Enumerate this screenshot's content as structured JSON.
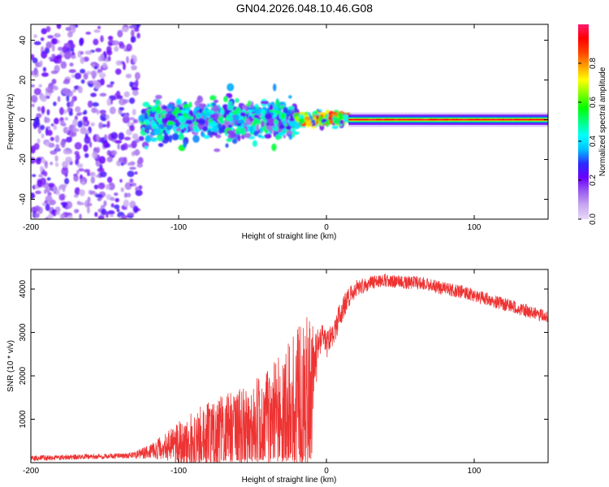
{
  "title": "GN04.2026.048.10.46.G08",
  "chart_data": [
    {
      "type": "heatmap",
      "xlabel": "Height of straight line (km)",
      "ylabel": "Frequency (Hz)",
      "xlim": [
        -200,
        150
      ],
      "ylim": [
        -50,
        48
      ],
      "xticks": [
        "-200",
        "-100",
        "0",
        "100"
      ],
      "xtick_values": [
        -200,
        -100,
        0,
        100
      ],
      "yticks": [
        "-40",
        "-20",
        "0",
        "20",
        "40"
      ],
      "ytick_values": [
        -40,
        -20,
        0,
        20,
        40
      ],
      "colorbar": {
        "label": "Normalized spectral amplitude",
        "range": [
          0,
          1
        ],
        "ticks": [
          "0.0",
          "0.2",
          "0.4",
          "0.6",
          "0.8"
        ],
        "tick_values": [
          0.0,
          0.2,
          0.4,
          0.6,
          0.8
        ],
        "colors": [
          "#e8d8f8",
          "#c8a8f0",
          "#9a5cf0",
          "#6a00ff",
          "#2b2bff",
          "#00bfff",
          "#00ffff",
          "#00ff80",
          "#00ff00",
          "#80ff00",
          "#ffff00",
          "#ffa000",
          "#ff4000",
          "#ff0000",
          "#ff1a6e"
        ]
      },
      "regions": [
        {
          "x_range": [
            -200,
            -125
          ],
          "f_range": [
            -50,
            48
          ],
          "amplitude": 0.1,
          "description": "scattered noise"
        },
        {
          "x_range": [
            -125,
            -20
          ],
          "f_range": [
            -12,
            10
          ],
          "amplitude": 0.35
        },
        {
          "x_range": [
            -20,
            15
          ],
          "f_range": [
            -4,
            4
          ],
          "amplitude": 0.6
        },
        {
          "x_range": [
            15,
            150
          ],
          "f_range": [
            -3,
            3
          ],
          "amplitude": 0.75,
          "center_amplitude": 0.95
        }
      ]
    },
    {
      "type": "line",
      "xlabel": "Height of straight line (km)",
      "ylabel": "SNR (10 * v/v)",
      "xlim": [
        -200,
        150
      ],
      "ylim": [
        0,
        4450
      ],
      "xticks": [
        "-200",
        "-100",
        "0",
        "100"
      ],
      "xtick_values": [
        -200,
        -100,
        0,
        100
      ],
      "yticks": [
        "1000",
        "2000",
        "3000",
        "4000"
      ],
      "ytick_values": [
        1000,
        2000,
        3000,
        4000
      ],
      "color": "#ee3333",
      "series": [
        {
          "name": "SNR",
          "x": [
            -200,
            -180,
            -160,
            -140,
            -130,
            -120,
            -110,
            -100,
            -90,
            -80,
            -70,
            -60,
            -50,
            -40,
            -30,
            -25,
            -20,
            -15,
            -10,
            -8,
            -5,
            -2,
            0,
            5,
            10,
            15,
            20,
            30,
            40,
            50,
            60,
            70,
            80,
            90,
            100,
            110,
            120,
            130,
            140,
            150
          ],
          "mean": [
            100,
            120,
            140,
            150,
            170,
            250,
            350,
            450,
            500,
            600,
            650,
            700,
            700,
            800,
            900,
            1000,
            1100,
            1200,
            1500,
            2200,
            2800,
            2900,
            2700,
            3000,
            3500,
            3800,
            4000,
            4150,
            4200,
            4150,
            4150,
            4100,
            4000,
            3950,
            3850,
            3750,
            3650,
            3550,
            3450,
            3350
          ],
          "spread": [
            60,
            60,
            60,
            60,
            80,
            150,
            300,
            500,
            700,
            800,
            900,
            1000,
            1200,
            1400,
            1600,
            1800,
            2000,
            2200,
            1800,
            900,
            400,
            300,
            300,
            300,
            300,
            250,
            200,
            150,
            150,
            150,
            150,
            150,
            150,
            150,
            150,
            150,
            150,
            150,
            150,
            150
          ]
        }
      ]
    }
  ]
}
